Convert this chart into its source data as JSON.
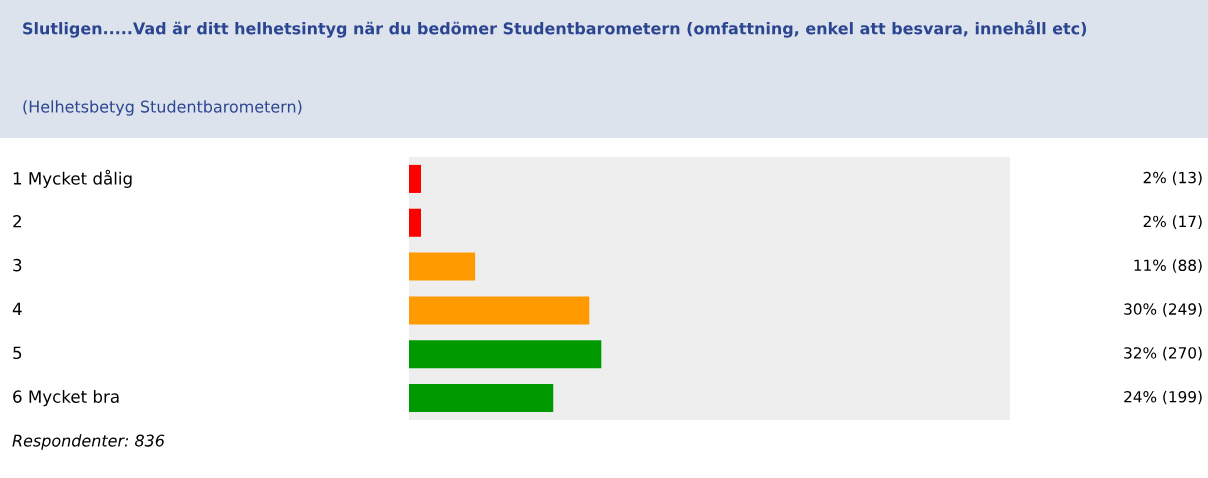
{
  "chart_data": {
    "type": "bar",
    "orientation": "horizontal",
    "title": "Slutligen.....Vad är ditt helhetsintyg när du bedömer Studentbarometern (omfattning, enkel att besvara, innehåll etc)",
    "subtitle": "(Helhetsbetyg Studentbarometern)",
    "categories": [
      "1 Mycket dålig",
      "2",
      "3",
      "4",
      "5",
      "6 Mycket bra"
    ],
    "values": [
      2,
      2,
      11,
      30,
      32,
      24
    ],
    "colors": [
      "#ff0000",
      "#ff0000",
      "#ff9900",
      "#ff9900",
      "#009900",
      "#009900"
    ],
    "value_labels": [
      "2% (13)",
      "2% (17)",
      "11% (88)",
      "30% (249)",
      "32% (270)",
      "24% (199)"
    ],
    "xlim": [
      0,
      100
    ],
    "annotations": [
      "Respondenter: 836"
    ]
  }
}
